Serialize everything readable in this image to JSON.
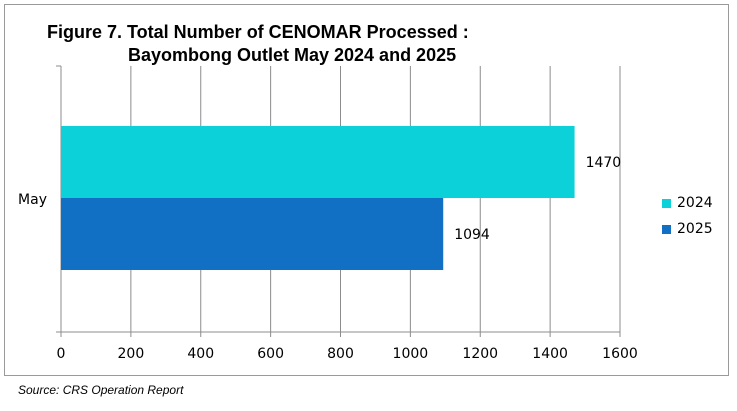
{
  "chart_data": {
    "type": "bar",
    "orientation": "horizontal",
    "title_line_1": "Figure 7. Total Number of CENOMAR Processed :",
    "title_line_2": "Bayombong Outlet May 2024 and 2025",
    "categories": [
      "May"
    ],
    "series": [
      {
        "name": "2024",
        "values": [
          1470
        ],
        "color": "#0dd1d9"
      },
      {
        "name": "2025",
        "values": [
          1094
        ],
        "color": "#1170c4"
      }
    ],
    "x_ticks": [
      "0",
      "200",
      "400",
      "600",
      "800",
      "1000",
      "1200",
      "1400",
      "1600"
    ],
    "xlim": [
      0,
      1600
    ],
    "grid": "vertical",
    "legend_position": "right",
    "xlabel": "",
    "ylabel": ""
  },
  "source_note": "Source: CRS Operation Report"
}
